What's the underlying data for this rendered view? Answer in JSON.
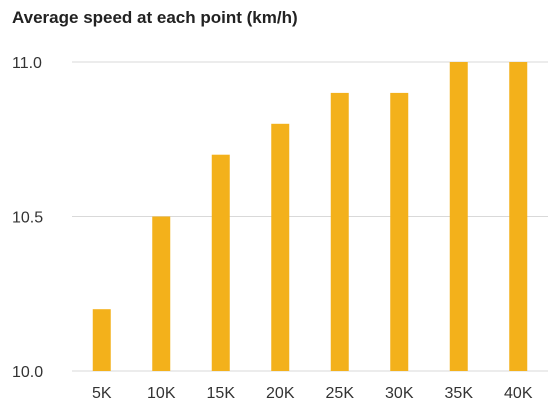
{
  "chart_data": {
    "type": "bar",
    "title": "Average speed at each point (km/h)",
    "xlabel": "",
    "ylabel": "",
    "categories": [
      "5K",
      "10K",
      "15K",
      "20K",
      "25K",
      "30K",
      "35K",
      "40K"
    ],
    "values": [
      10.2,
      10.5,
      10.7,
      10.8,
      10.9,
      10.9,
      11.0,
      11.0
    ],
    "ylim": [
      10.0,
      11.0
    ],
    "yticks": [
      "10.0",
      "10.5",
      "11.0"
    ],
    "grid": true,
    "legend": "none",
    "colors": {
      "bar": "#F3B11B",
      "gridline": "#d9d9d9",
      "axis_text": "#333333",
      "title_text": "#222222"
    }
  }
}
